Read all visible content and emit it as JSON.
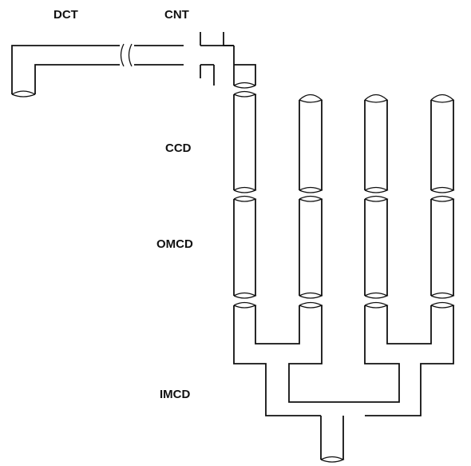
{
  "labels": {
    "dct": "DCT",
    "cnt": "CNT",
    "ccd": "CCD",
    "omcd": "OMCD",
    "imcd": "IMCD"
  },
  "colors": {
    "line": "#111111",
    "background": "#ffffff"
  }
}
